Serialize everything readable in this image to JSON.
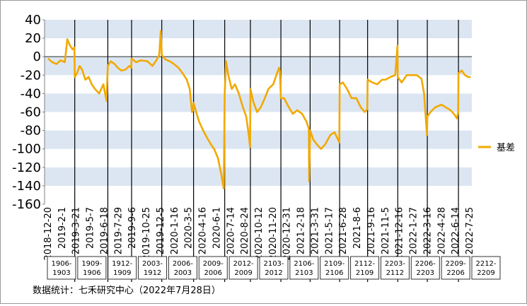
{
  "chart_data": {
    "type": "line",
    "title": "",
    "xlabel": "",
    "ylabel": "",
    "ylim": [
      -160,
      40
    ],
    "yticks": [
      40,
      20,
      0,
      -20,
      -40,
      -60,
      -80,
      -100,
      -120,
      -140,
      -160
    ],
    "grid": "alternating horizontal bands",
    "legend_position": "right",
    "x_tick_labels": [
      "2018-12-20",
      "2019-2-1",
      "2019-3-21",
      "2019-5-7",
      "2019-6-18",
      "2019-7-29",
      "2019-9-6",
      "2019-10-25",
      "2019-12-5",
      "2020-1-16",
      "2020-3-5",
      "2020-4-16",
      "2020-6-1",
      "2020-7-14",
      "2020-8-24",
      "2020-10-12",
      "2020-11-20",
      "2020-12-31",
      "2021-2-18",
      "2021-3-31",
      "2021-5-17",
      "2021-6-28",
      "2021-8-6",
      "2021-9-16",
      "2021-11-5",
      "2021-12-16",
      "2022-1-27",
      "2022-3-16",
      "2022-4-28",
      "2022-6-14",
      "2022-7-25"
    ],
    "contract_labels": [
      {
        "name": "1906-1903"
      },
      {
        "name": "1909-1906"
      },
      {
        "name": "1912-1909"
      },
      {
        "name": "2003-1912"
      },
      {
        "name": "2006-2003"
      },
      {
        "name": "2009-2006"
      },
      {
        "name": "2012-2009"
      },
      {
        "name": "2103-2012"
      },
      {
        "name": "2106-2103"
      },
      {
        "name": "2109-2106"
      },
      {
        "name": "2112-2109"
      },
      {
        "name": "2203-2112"
      },
      {
        "name": "2206-2203"
      },
      {
        "name": "2209-2206"
      },
      {
        "name": "2212-2209"
      }
    ],
    "contract_switch_dates": [
      "2019-3-13",
      "2019-6-24",
      "2019-9-6",
      "2019-12-9",
      "2020-3-17",
      "2020-6-22",
      "2020-9-10",
      "2020-12-14",
      "2021-3-15",
      "2021-6-15",
      "2021-9-10",
      "2021-12-13",
      "2022-3-15",
      "2022-6-20"
    ],
    "series": [
      {
        "name": "基差",
        "color": "#F2A900",
        "points": [
          [
            "2018-12-20",
            -2
          ],
          [
            "2019-1-2",
            -6
          ],
          [
            "2019-1-15",
            -8
          ],
          [
            "2019-1-28",
            -4
          ],
          [
            "2019-2-10",
            -6
          ],
          [
            "2019-2-18",
            19
          ],
          [
            "2019-2-26",
            12
          ],
          [
            "2019-3-6",
            8
          ],
          [
            "2019-3-12",
            10
          ],
          [
            "2019-3-13",
            -22
          ],
          [
            "2019-3-20",
            -18
          ],
          [
            "2019-3-28",
            -10
          ],
          [
            "2019-4-5",
            -14
          ],
          [
            "2019-4-15",
            -25
          ],
          [
            "2019-4-25",
            -22
          ],
          [
            "2019-5-5",
            -30
          ],
          [
            "2019-5-15",
            -35
          ],
          [
            "2019-5-28",
            -40
          ],
          [
            "2019-6-10",
            -30
          ],
          [
            "2019-6-20",
            -48
          ],
          [
            "2019-6-24",
            -10
          ],
          [
            "2019-7-3",
            -5
          ],
          [
            "2019-7-15",
            -8
          ],
          [
            "2019-7-25",
            -12
          ],
          [
            "2019-8-5",
            -15
          ],
          [
            "2019-8-18",
            -14
          ],
          [
            "2019-8-30",
            -10
          ],
          [
            "2019-9-5",
            -12
          ],
          [
            "2019-9-6",
            -2
          ],
          [
            "2019-9-20",
            -6
          ],
          [
            "2019-10-5",
            -4
          ],
          [
            "2019-10-25",
            -5
          ],
          [
            "2019-11-10",
            -10
          ],
          [
            "2019-11-22",
            -4
          ],
          [
            "2019-12-1",
            2
          ],
          [
            "2019-12-6",
            28
          ],
          [
            "2019-12-9",
            2
          ],
          [
            "2019-12-20",
            -3
          ],
          [
            "2020-1-3",
            -5
          ],
          [
            "2020-1-16",
            -8
          ],
          [
            "2020-1-30",
            -12
          ],
          [
            "2020-2-12",
            -18
          ],
          [
            "2020-2-25",
            -25
          ],
          [
            "2020-3-5",
            -35
          ],
          [
            "2020-3-12",
            -60
          ],
          [
            "2020-3-16",
            -58
          ],
          [
            "2020-3-17",
            -50
          ],
          [
            "2020-3-25",
            -60
          ],
          [
            "2020-4-3",
            -70
          ],
          [
            "2020-4-16",
            -80
          ],
          [
            "2020-4-28",
            -88
          ],
          [
            "2020-5-10",
            -95
          ],
          [
            "2020-5-20",
            -100
          ],
          [
            "2020-6-1",
            -110
          ],
          [
            "2020-6-10",
            -125
          ],
          [
            "2020-6-19",
            -143
          ],
          [
            "2020-6-22",
            -40
          ],
          [
            "2020-6-26",
            -5
          ],
          [
            "2020-7-3",
            -20
          ],
          [
            "2020-7-14",
            -35
          ],
          [
            "2020-7-24",
            -30
          ],
          [
            "2020-8-5",
            -40
          ],
          [
            "2020-8-18",
            -55
          ],
          [
            "2020-8-28",
            -65
          ],
          [
            "2020-9-5",
            -85
          ],
          [
            "2020-9-9",
            -98
          ],
          [
            "2020-9-10",
            -35
          ],
          [
            "2020-9-20",
            -50
          ],
          [
            "2020-10-1",
            -60
          ],
          [
            "2020-10-12",
            -55
          ],
          [
            "2020-10-25",
            -45
          ],
          [
            "2020-11-5",
            -35
          ],
          [
            "2020-11-20",
            -30
          ],
          [
            "2020-11-30",
            -20
          ],
          [
            "2020-12-8",
            -12
          ],
          [
            "2020-12-11",
            -15
          ],
          [
            "2020-12-14",
            -45
          ],
          [
            "2020-12-24",
            -45
          ],
          [
            "2021-1-8",
            -55
          ],
          [
            "2021-1-20",
            -62
          ],
          [
            "2021-2-3",
            -58
          ],
          [
            "2021-2-18",
            -62
          ],
          [
            "2021-3-3",
            -70
          ],
          [
            "2021-3-11",
            -78
          ],
          [
            "2021-3-12",
            -135
          ],
          [
            "2021-3-15",
            -80
          ],
          [
            "2021-3-25",
            -90
          ],
          [
            "2021-4-5",
            -95
          ],
          [
            "2021-4-18",
            -100
          ],
          [
            "2021-5-1",
            -95
          ],
          [
            "2021-5-17",
            -85
          ],
          [
            "2021-5-30",
            -82
          ],
          [
            "2021-6-10",
            -90
          ],
          [
            "2021-6-14",
            -93
          ],
          [
            "2021-6-15",
            -30
          ],
          [
            "2021-6-25",
            -28
          ],
          [
            "2021-7-8",
            -35
          ],
          [
            "2021-7-22",
            -45
          ],
          [
            "2021-8-6",
            -45
          ],
          [
            "2021-8-20",
            -55
          ],
          [
            "2021-9-1",
            -60
          ],
          [
            "2021-9-9",
            -57
          ],
          [
            "2021-9-10",
            -25
          ],
          [
            "2021-9-25",
            -28
          ],
          [
            "2021-10-10",
            -30
          ],
          [
            "2021-10-25",
            -25
          ],
          [
            "2021-11-5",
            -25
          ],
          [
            "2021-11-20",
            -22
          ],
          [
            "2021-12-5",
            -20
          ],
          [
            "2021-12-12",
            12
          ],
          [
            "2021-12-13",
            -22
          ],
          [
            "2021-12-25",
            -28
          ],
          [
            "2022-1-10",
            -20
          ],
          [
            "2022-1-27",
            -20
          ],
          [
            "2022-2-10",
            -20
          ],
          [
            "2022-2-25",
            -24
          ],
          [
            "2022-3-5",
            -40
          ],
          [
            "2022-3-14",
            -85
          ],
          [
            "2022-3-15",
            -65
          ],
          [
            "2022-3-25",
            -60
          ],
          [
            "2022-4-8",
            -55
          ],
          [
            "2022-4-28",
            -52
          ],
          [
            "2022-5-12",
            -55
          ],
          [
            "2022-5-26",
            -58
          ],
          [
            "2022-6-8",
            -63
          ],
          [
            "2022-6-15",
            -67
          ],
          [
            "2022-6-19",
            -60
          ],
          [
            "2022-6-20",
            -18
          ],
          [
            "2022-6-30",
            -15
          ],
          [
            "2022-7-10",
            -20
          ],
          [
            "2022-7-20",
            -22
          ],
          [
            "2022-7-28",
            -22
          ]
        ]
      }
    ]
  },
  "legend": {
    "label": "基差",
    "color": "#F2A900"
  },
  "footer": {
    "source": "数据统计：七禾研究中心（2022年7月28日）"
  },
  "colors": {
    "band": "#DCE6F2",
    "line": "#F2A900",
    "switch_line": "#000000"
  }
}
